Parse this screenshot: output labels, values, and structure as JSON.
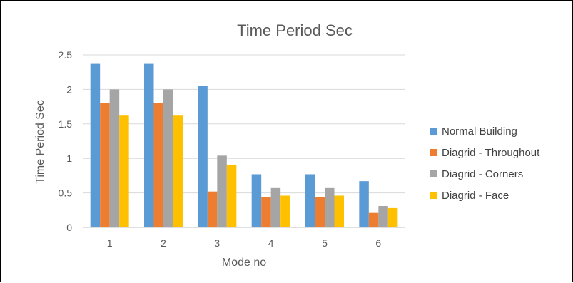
{
  "chart_data": {
    "type": "bar",
    "title": "Time Period Sec",
    "xlabel": "Mode no",
    "ylabel": "Time Period Sec",
    "categories": [
      "1",
      "2",
      "3",
      "4",
      "5",
      "6"
    ],
    "yticks": [
      "0",
      "0.5",
      "1",
      "1.5",
      "2",
      "2.5"
    ],
    "ylim": [
      0,
      2.5
    ],
    "grid": true,
    "legend_position": "right",
    "series": [
      {
        "name": "Normal Building",
        "color": "#5B9BD5",
        "values": [
          2.37,
          2.37,
          2.05,
          0.77,
          0.77,
          0.67
        ]
      },
      {
        "name": "Diagrid  - Throughout",
        "color": "#ED7D31",
        "values": [
          1.8,
          1.8,
          0.52,
          0.44,
          0.44,
          0.21
        ]
      },
      {
        "name": "Diagrid  - Corners",
        "color": "#A5A5A5",
        "values": [
          2.0,
          2.0,
          1.04,
          0.57,
          0.57,
          0.31
        ]
      },
      {
        "name": "Diagrid  - Face",
        "color": "#FFC000",
        "values": [
          1.62,
          1.62,
          0.91,
          0.46,
          0.46,
          0.28
        ]
      }
    ]
  }
}
